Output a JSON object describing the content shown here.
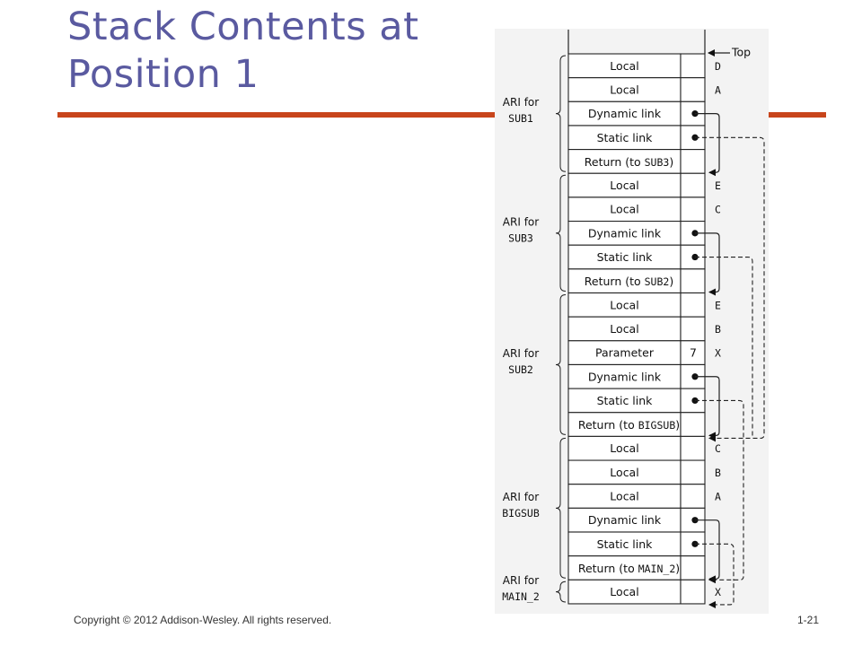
{
  "slide": {
    "title_line1": "Stack Contents at",
    "title_line2": "Position 1",
    "footer_copyright": "Copyright © 2012 Addison-Wesley. All rights reserved.",
    "footer_page": "1-21"
  },
  "diagram": {
    "top_label": "Top",
    "records": [
      {
        "label_line1": "ARI for",
        "label_line2": "SUB1",
        "rows": [
          {
            "text": "Local",
            "var": "D"
          },
          {
            "text": "Local",
            "var": "A"
          },
          {
            "text": "Dynamic link",
            "dot": true
          },
          {
            "text": "Static link",
            "dot": true
          },
          {
            "text": "Return (to ",
            "mono": "SUB3",
            "tail": ")"
          }
        ]
      },
      {
        "label_line1": "ARI for",
        "label_line2": "SUB3",
        "rows": [
          {
            "text": "Local",
            "var": "E"
          },
          {
            "text": "Local",
            "var": "C"
          },
          {
            "text": "Dynamic link",
            "dot": true
          },
          {
            "text": "Static link",
            "dot": true
          },
          {
            "text": "Return (to ",
            "mono": "SUB2",
            "tail": ")"
          }
        ]
      },
      {
        "label_line1": "ARI for",
        "label_line2": "SUB2",
        "rows": [
          {
            "text": "Local",
            "var": "E"
          },
          {
            "text": "Local",
            "var": "B"
          },
          {
            "text": "Parameter",
            "value": "7",
            "var": "X"
          },
          {
            "text": "Dynamic link",
            "dot": true
          },
          {
            "text": "Static link",
            "dot": true
          },
          {
            "text": "Return (to ",
            "mono": "BIGSUB",
            "tail": ")"
          }
        ]
      },
      {
        "label_line1": "ARI for",
        "label_line2": "BIGSUB",
        "rows": [
          {
            "text": "Local",
            "var": "C"
          },
          {
            "text": "Local",
            "var": "B"
          },
          {
            "text": "Local",
            "var": "A"
          },
          {
            "text": "Dynamic link",
            "dot": true
          },
          {
            "text": "Static link",
            "dot": true
          },
          {
            "text": "Return (to ",
            "mono": "MAIN_2",
            "tail": ")"
          }
        ]
      },
      {
        "label_line1": "ARI for",
        "label_line2": "MAIN_2",
        "rows": [
          {
            "text": "Local",
            "var": "X"
          }
        ]
      }
    ],
    "colors": {
      "stroke": "#222222",
      "accent": "#c8451b",
      "title": "#5a5aa0"
    }
  }
}
